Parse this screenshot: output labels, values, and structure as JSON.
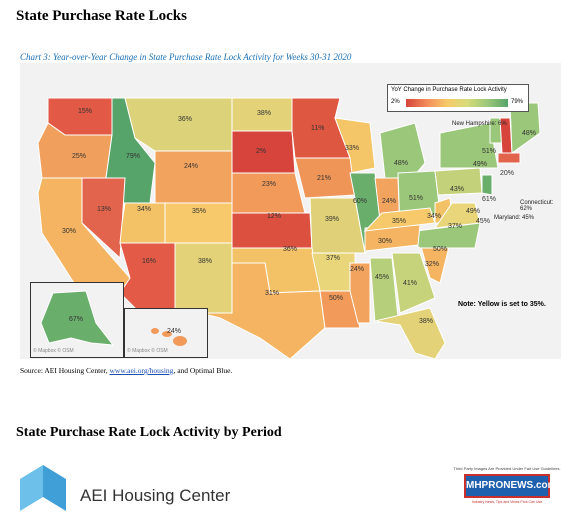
{
  "heading": "State Purchase Rate Locks",
  "chart_title": "Chart 3: Year-over-Year Change in State Purchase Rate Lock Activity for Weeks 30-31 2020",
  "legend": {
    "title": "YoY Change in Purchase Rate Lock Activity",
    "min": "2%",
    "max": "79%"
  },
  "callouts": {
    "nh": "New Hampshire: 6%",
    "ct": "Connecticut: 62%",
    "md": "Maryland: 45%"
  },
  "note": "Note: Yellow is set to 35%.",
  "map_credit": "© Mapbox © OSM",
  "source": {
    "prefix": "Source: AEI Housing Center, ",
    "link": "www.aei.org/housing",
    "suffix": ", and Optimal Blue."
  },
  "heading2": "State Purchase Rate Lock Activity by Period",
  "aei_text": "AEI Housing Center",
  "mh": {
    "small": "Third Party Images Are Provided Under Fair Use Guidelines.",
    "logo": "MHPRONEWS.com",
    "tag": "Industry News, Tips and Views Pros Can Use"
  },
  "colors": {
    "low": "#d6443c",
    "mid": "#f7c96a",
    "high": "#56a46a"
  },
  "chart_data": {
    "type": "choropleth",
    "title": "Chart 3: Year-over-Year Change in State Purchase Rate Lock Activity for Weeks 30-31 2020",
    "states": [
      {
        "state": "WA",
        "value": "15%"
      },
      {
        "state": "OR",
        "value": "25%"
      },
      {
        "state": "ID",
        "value": "79%"
      },
      {
        "state": "MT",
        "value": "36%"
      },
      {
        "state": "ND",
        "value": "38%"
      },
      {
        "state": "SD",
        "value": "2%"
      },
      {
        "state": "MN",
        "value": "11%"
      },
      {
        "state": "WI",
        "value": "33%"
      },
      {
        "state": "MI",
        "value": "48%"
      },
      {
        "state": "WY",
        "value": "24%"
      },
      {
        "state": "NE",
        "value": "23%"
      },
      {
        "state": "IA",
        "value": "21%"
      },
      {
        "state": "CA",
        "value": "30%"
      },
      {
        "state": "NV",
        "value": "13%"
      },
      {
        "state": "UT",
        "value": "34%"
      },
      {
        "state": "CO",
        "value": "35%"
      },
      {
        "state": "KS",
        "value": "12%"
      },
      {
        "state": "MO",
        "value": "39%"
      },
      {
        "state": "IL",
        "value": "60%"
      },
      {
        "state": "IN",
        "value": "24%"
      },
      {
        "state": "OH",
        "value": "51%"
      },
      {
        "state": "AZ",
        "value": "16%"
      },
      {
        "state": "NM",
        "value": "38%"
      },
      {
        "state": "OK",
        "value": "36%"
      },
      {
        "state": "AR",
        "value": "37%"
      },
      {
        "state": "TN",
        "value": "30%"
      },
      {
        "state": "KY",
        "value": "35%"
      },
      {
        "state": "WV",
        "value": "34%"
      },
      {
        "state": "VA",
        "value": "37%"
      },
      {
        "state": "TX",
        "value": "31%"
      },
      {
        "state": "LA",
        "value": "50%"
      },
      {
        "state": "MS",
        "value": "24%"
      },
      {
        "state": "AL",
        "value": "45%"
      },
      {
        "state": "GA",
        "value": "41%"
      },
      {
        "state": "SC",
        "value": "32%"
      },
      {
        "state": "NC",
        "value": "50%"
      },
      {
        "state": "FL",
        "value": "38%"
      },
      {
        "state": "PA",
        "value": "43%"
      },
      {
        "state": "NY",
        "value": "49%"
      },
      {
        "state": "VT",
        "value": "51%"
      },
      {
        "state": "ME",
        "value": "48%"
      },
      {
        "state": "MA",
        "value": "20%"
      },
      {
        "state": "NJ",
        "value": "61%"
      },
      {
        "state": "DE",
        "value": "49%"
      },
      {
        "state": "MD",
        "value": "45%"
      },
      {
        "state": "NH",
        "value": "6%"
      },
      {
        "state": "CT",
        "value": "62%"
      },
      {
        "state": "AK",
        "value": "67%"
      },
      {
        "state": "HI",
        "value": "24%"
      }
    ]
  }
}
